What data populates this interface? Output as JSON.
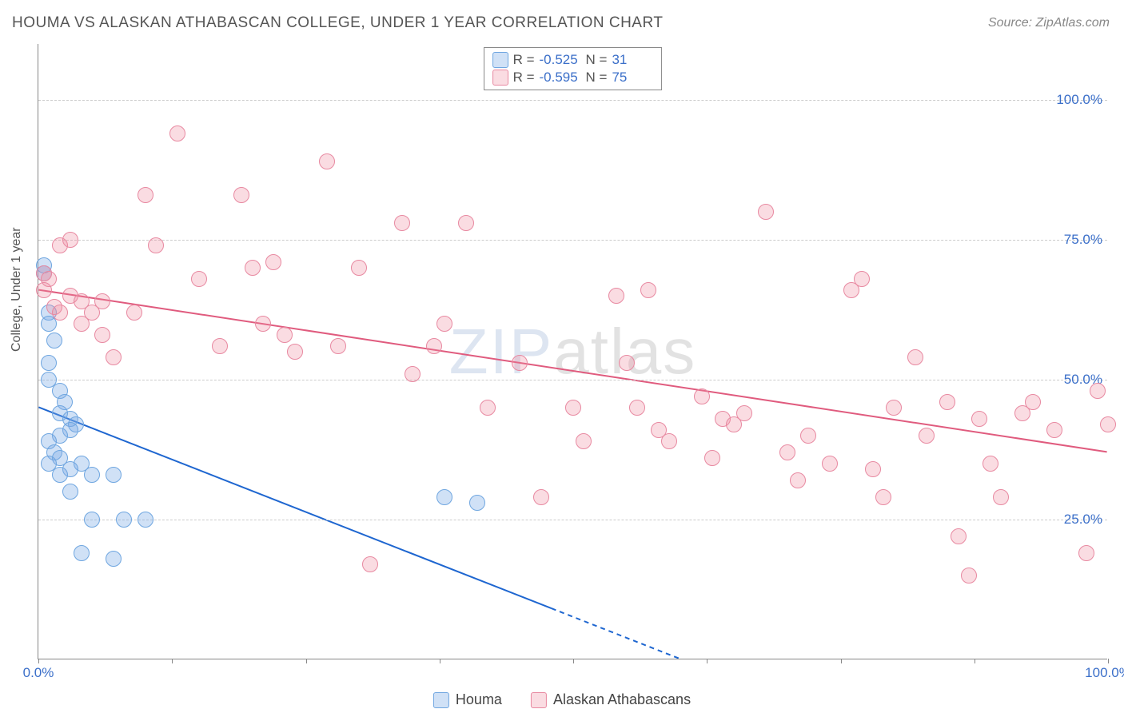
{
  "title": "HOUMA VS ALASKAN ATHABASCAN COLLEGE, UNDER 1 YEAR CORRELATION CHART",
  "source": "Source: ZipAtlas.com",
  "ylabel": "College, Under 1 year",
  "watermark_a": "ZIP",
  "watermark_b": "atlas",
  "chart": {
    "type": "scatter",
    "xlim": [
      0,
      100
    ],
    "ylim": [
      0,
      110
    ],
    "xtick_labels": [
      "0.0%",
      "100.0%"
    ],
    "xtick_label_positions": [
      0,
      100
    ],
    "xtick_marks": [
      0,
      12.5,
      25,
      37.5,
      50,
      62.5,
      75,
      87.5,
      100
    ],
    "ygrid": [
      25,
      50,
      75,
      100
    ],
    "ytick_labels": [
      "25.0%",
      "50.0%",
      "75.0%",
      "100.0%"
    ],
    "background_color": "#ffffff",
    "grid_color": "#cccccc",
    "axis_color": "#888888",
    "tick_label_color": "#3b6fc9",
    "point_radius": 10,
    "series": [
      {
        "name": "Houma",
        "label": "Houma",
        "fill": "rgba(120,170,230,0.35)",
        "stroke": "#6fa6e0",
        "R": "-0.525",
        "N": "31",
        "trend": {
          "x1": 0,
          "y1": 45,
          "x2": 48,
          "y2": 9,
          "solid_to_x": 48,
          "dash_to_x": 60,
          "color": "#1e66d0",
          "width": 2
        },
        "points": [
          [
            0.5,
            70.5
          ],
          [
            0.5,
            69
          ],
          [
            1,
            62
          ],
          [
            1,
            60
          ],
          [
            1.5,
            57
          ],
          [
            1,
            53
          ],
          [
            1,
            50
          ],
          [
            2,
            48
          ],
          [
            2.5,
            46
          ],
          [
            2,
            44
          ],
          [
            3,
            43
          ],
          [
            3.5,
            42
          ],
          [
            3,
            41
          ],
          [
            2,
            40
          ],
          [
            1,
            39
          ],
          [
            1.5,
            37
          ],
          [
            2,
            36
          ],
          [
            1,
            35
          ],
          [
            4,
            35
          ],
          [
            3,
            34
          ],
          [
            2,
            33
          ],
          [
            5,
            33
          ],
          [
            7,
            33
          ],
          [
            3,
            30
          ],
          [
            5,
            25
          ],
          [
            8,
            25
          ],
          [
            10,
            25
          ],
          [
            4,
            19
          ],
          [
            7,
            18
          ],
          [
            38,
            29
          ],
          [
            41,
            28
          ]
        ]
      },
      {
        "name": "Alaskan Athabascans",
        "label": "Alaskan Athabascans",
        "fill": "rgba(240,140,160,0.30)",
        "stroke": "#e889a1",
        "R": "-0.595",
        "N": "75",
        "trend": {
          "x1": 0,
          "y1": 66,
          "x2": 100,
          "y2": 37,
          "solid_to_x": 100,
          "dash_to_x": 100,
          "color": "#e05b7e",
          "width": 2
        },
        "points": [
          [
            0.5,
            69
          ],
          [
            1,
            68
          ],
          [
            0.5,
            66
          ],
          [
            2,
            74
          ],
          [
            3,
            75
          ],
          [
            1.5,
            63
          ],
          [
            2,
            62
          ],
          [
            3,
            65
          ],
          [
            4,
            64
          ],
          [
            4,
            60
          ],
          [
            5,
            62
          ],
          [
            6,
            64
          ],
          [
            6,
            58
          ],
          [
            7,
            54
          ],
          [
            9,
            62
          ],
          [
            10,
            83
          ],
          [
            11,
            74
          ],
          [
            13,
            94
          ],
          [
            15,
            68
          ],
          [
            17,
            56
          ],
          [
            19,
            83
          ],
          [
            20,
            70
          ],
          [
            21,
            60
          ],
          [
            22,
            71
          ],
          [
            23,
            58
          ],
          [
            24,
            55
          ],
          [
            27,
            89
          ],
          [
            28,
            56
          ],
          [
            30,
            70
          ],
          [
            31,
            17
          ],
          [
            34,
            78
          ],
          [
            35,
            51
          ],
          [
            37,
            56
          ],
          [
            38,
            60
          ],
          [
            40,
            78
          ],
          [
            42,
            45
          ],
          [
            45,
            53
          ],
          [
            47,
            29
          ],
          [
            50,
            45
          ],
          [
            51,
            39
          ],
          [
            54,
            65
          ],
          [
            55,
            53
          ],
          [
            56,
            45
          ],
          [
            57,
            66
          ],
          [
            58,
            41
          ],
          [
            59,
            39
          ],
          [
            62,
            47
          ],
          [
            63,
            36
          ],
          [
            64,
            43
          ],
          [
            65,
            42
          ],
          [
            66,
            44
          ],
          [
            68,
            80
          ],
          [
            70,
            37
          ],
          [
            71,
            32
          ],
          [
            72,
            40
          ],
          [
            74,
            35
          ],
          [
            76,
            66
          ],
          [
            77,
            68
          ],
          [
            78,
            34
          ],
          [
            79,
            29
          ],
          [
            80,
            45
          ],
          [
            82,
            54
          ],
          [
            83,
            40
          ],
          [
            85,
            46
          ],
          [
            86,
            22
          ],
          [
            87,
            15
          ],
          [
            88,
            43
          ],
          [
            89,
            35
          ],
          [
            90,
            29
          ],
          [
            92,
            44
          ],
          [
            93,
            46
          ],
          [
            95,
            41
          ],
          [
            98,
            19
          ],
          [
            99,
            48
          ],
          [
            100,
            42
          ]
        ]
      }
    ]
  },
  "legend_top": {
    "r_label": "R =",
    "n_label": "N ="
  }
}
